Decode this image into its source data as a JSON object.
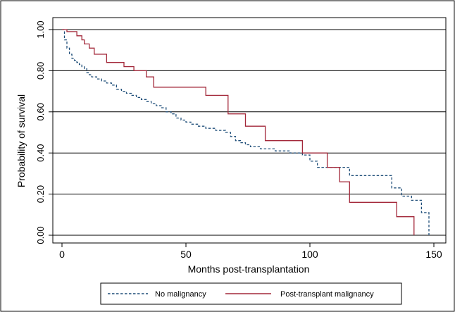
{
  "chart_data": {
    "type": "line",
    "subtype": "step (Kaplan-Meier survival)",
    "title": "",
    "xlabel": "Months post-transplantation",
    "ylabel": "Probability of survival",
    "xlim": [
      0,
      150
    ],
    "ylim": [
      0,
      1
    ],
    "x_ticks": [
      0,
      50,
      100,
      150
    ],
    "x_tick_labels": [
      "0",
      "50",
      "100",
      "150"
    ],
    "y_ticks": [
      0,
      0.2,
      0.4,
      0.6,
      0.8,
      1.0
    ],
    "y_tick_labels": [
      "0.00",
      "0.20",
      "0.40",
      "0.60",
      "0.80",
      "1.00"
    ],
    "grid": "horizontal",
    "legend_position": "bottom",
    "series": [
      {
        "name": "No malignancy",
        "color": "#1f4e79",
        "dash": "dashed",
        "x": [
          0,
          1,
          2,
          3,
          4,
          5,
          6,
          7,
          8,
          9,
          10,
          11,
          12,
          14,
          16,
          18,
          20,
          22,
          24,
          26,
          28,
          30,
          32,
          34,
          36,
          38,
          40,
          42,
          44,
          46,
          48,
          50,
          52,
          55,
          58,
          62,
          66,
          68,
          70,
          72,
          74,
          76,
          80,
          86,
          92,
          97,
          100,
          103,
          108,
          116,
          123,
          133,
          137,
          141,
          145,
          147,
          148
        ],
        "y": [
          1.0,
          0.95,
          0.91,
          0.88,
          0.86,
          0.85,
          0.84,
          0.83,
          0.82,
          0.81,
          0.79,
          0.78,
          0.77,
          0.76,
          0.75,
          0.74,
          0.73,
          0.71,
          0.7,
          0.69,
          0.68,
          0.67,
          0.66,
          0.65,
          0.64,
          0.63,
          0.62,
          0.6,
          0.59,
          0.57,
          0.56,
          0.55,
          0.54,
          0.53,
          0.52,
          0.51,
          0.5,
          0.48,
          0.46,
          0.45,
          0.44,
          0.43,
          0.42,
          0.41,
          0.4,
          0.39,
          0.36,
          0.33,
          0.33,
          0.29,
          0.29,
          0.23,
          0.19,
          0.17,
          0.11,
          0.11,
          0.0
        ]
      },
      {
        "name": "Post-transplant malignancy",
        "color": "#a3283a",
        "dash": "solid",
        "x": [
          0,
          2,
          6,
          8,
          9,
          11,
          13,
          18,
          25,
          29,
          34,
          37,
          42,
          52,
          58,
          67,
          74,
          82,
          97,
          107,
          112,
          116,
          135,
          142
        ],
        "y": [
          1.0,
          0.99,
          0.97,
          0.95,
          0.93,
          0.91,
          0.88,
          0.84,
          0.82,
          0.8,
          0.77,
          0.72,
          0.72,
          0.72,
          0.68,
          0.59,
          0.53,
          0.46,
          0.4,
          0.33,
          0.26,
          0.16,
          0.09,
          0.0
        ]
      }
    ]
  }
}
